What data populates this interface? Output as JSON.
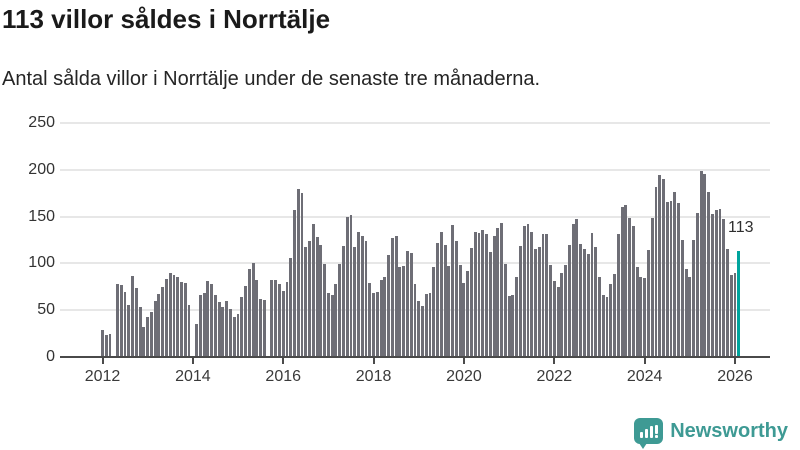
{
  "header": {
    "title": "113 villor såldes i Norrtälje",
    "subtitle": "Antal sålda villor i Norrtälje under de senaste tre månaderna."
  },
  "chart_data": {
    "type": "bar",
    "title": "113 villor såldes i Norrtälje",
    "subtitle": "Antal sålda villor i Norrtälje under de senaste tre månaderna.",
    "x_domain": "monthly, 2012-01 to 2026-02",
    "xticks": [
      2012,
      2014,
      2016,
      2018,
      2020,
      2022,
      2024,
      2026
    ],
    "yticks": [
      0,
      50,
      100,
      150,
      200,
      250
    ],
    "ylim": [
      0,
      250
    ],
    "grid": true,
    "bar_color": "#6e6e76",
    "highlight_color": "#00a49d",
    "highlight_last_bar": true,
    "last_value_label": "113",
    "values": [
      29,
      24,
      25,
      0,
      78,
      77,
      69,
      56,
      87,
      74,
      53,
      32,
      43,
      48,
      60,
      67,
      75,
      83,
      90,
      88,
      85,
      80,
      79,
      56,
      0,
      35,
      66,
      68,
      81,
      78,
      66,
      59,
      53,
      60,
      51,
      43,
      46,
      64,
      76,
      94,
      100,
      82,
      62,
      61,
      0,
      82,
      82,
      78,
      70,
      80,
      106,
      157,
      179,
      175,
      117,
      124,
      142,
      128,
      120,
      99,
      68,
      66,
      78,
      99,
      119,
      150,
      152,
      117,
      134,
      129,
      124,
      79,
      68,
      69,
      82,
      86,
      109,
      127,
      129,
      96,
      97,
      113,
      111,
      78,
      60,
      55,
      67,
      68,
      96,
      122,
      134,
      120,
      97,
      141,
      124,
      98,
      79,
      92,
      116,
      134,
      132,
      136,
      131,
      112,
      129,
      138,
      143,
      99,
      65,
      66,
      86,
      119,
      140,
      142,
      134,
      115,
      117,
      131,
      131,
      98,
      81,
      75,
      90,
      98,
      120,
      142,
      147,
      121,
      115,
      110,
      133,
      117,
      86,
      66,
      64,
      78,
      89,
      131,
      160,
      162,
      148,
      140,
      96,
      86,
      84,
      114,
      148,
      182,
      194,
      190,
      166,
      167,
      176,
      164,
      125,
      94,
      85,
      125,
      154,
      199,
      195,
      176,
      153,
      157,
      158,
      147,
      115,
      88,
      90,
      113
    ]
  },
  "annotation": {
    "label": "113"
  },
  "footer": {
    "brand": "Newsworthy",
    "brand_color": "#3e9a94"
  }
}
